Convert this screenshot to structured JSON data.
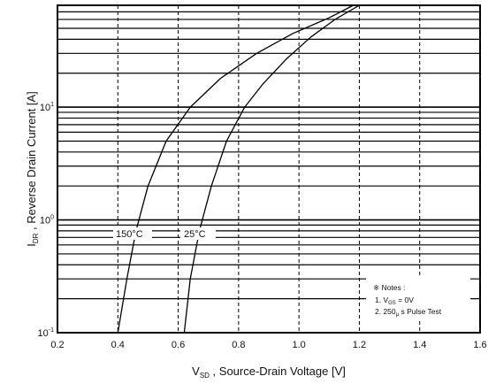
{
  "chart_data": {
    "type": "line",
    "xlabel": {
      "main": "V",
      "sub": "SD",
      "rest": " , Source-Drain Voltage  [V]"
    },
    "ylabel": {
      "main": "I",
      "sub": "DR",
      "rest": " , Reverse Drain Current  [A]"
    },
    "xlim": [
      0.2,
      1.6
    ],
    "ylim": [
      0.1,
      80
    ],
    "yscale": "log",
    "x_ticks": [
      "0.2",
      "0.4",
      "0.6",
      "0.8",
      "1.0",
      "1.2",
      "1.4",
      "1.6"
    ],
    "x_tick_values": [
      0.2,
      0.4,
      0.6,
      0.8,
      1.0,
      1.2,
      1.4,
      1.6
    ],
    "y_ticks": [
      {
        "base": "10",
        "exp": "-1",
        "value": 0.1
      },
      {
        "base": "10",
        "exp": "0",
        "value": 1
      },
      {
        "base": "10",
        "exp": "1",
        "value": 10
      }
    ],
    "grid": true,
    "series": [
      {
        "name": "150°C",
        "x": [
          0.4,
          0.43,
          0.46,
          0.5,
          0.56,
          0.64,
          0.74,
          0.86,
          0.98,
          1.1,
          1.18
        ],
        "y": [
          0.1,
          0.3,
          0.8,
          2.0,
          5.0,
          10.0,
          18.0,
          30.0,
          45.0,
          62.0,
          80.0
        ]
      },
      {
        "name": "25°C",
        "x": [
          0.62,
          0.64,
          0.67,
          0.71,
          0.76,
          0.82,
          0.88,
          0.96,
          1.04,
          1.12,
          1.2
        ],
        "y": [
          0.1,
          0.3,
          0.8,
          2.0,
          5.0,
          10.0,
          16.0,
          27.0,
          42.0,
          60.0,
          80.0
        ]
      }
    ],
    "notes": {
      "title": "※ Notes :",
      "line1": {
        "pre": "1. V",
        "sub": "GS",
        "post": " = 0V"
      },
      "line2": {
        "pre": "2. 250",
        "sub": "μ",
        "post": " s Pulse Test"
      }
    }
  }
}
